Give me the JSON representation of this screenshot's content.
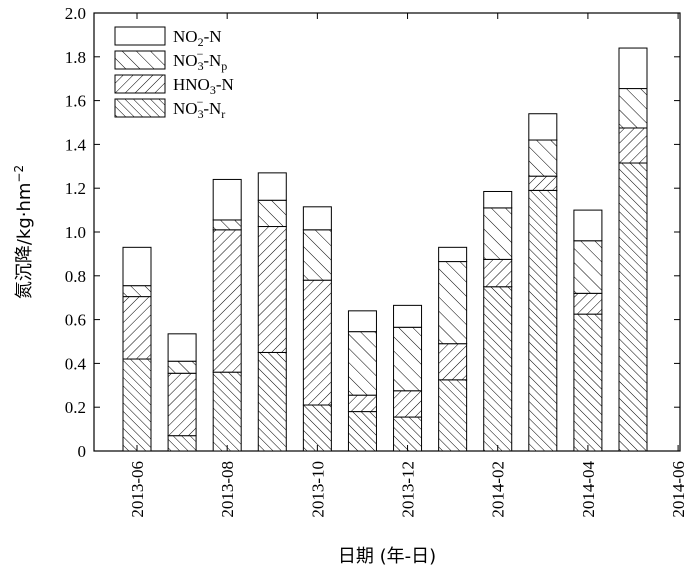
{
  "chart_data": {
    "type": "bar",
    "stacked": true,
    "ylabel_main": "氮沉降/kg·hm",
    "ylabel_sup": "−2",
    "xlabel": "日期 (年-日)",
    "ylim": [
      0,
      2.0
    ],
    "yticks": [
      "0",
      "0.2",
      "0.4",
      "0.6",
      "0.8",
      "1.0",
      "1.2",
      "1.4",
      "1.6",
      "1.8",
      "2.0"
    ],
    "xticks": [
      "2013-06",
      "2013-08",
      "2013-10",
      "2013-12",
      "2014-02",
      "2014-04",
      "2014-06"
    ],
    "categories": [
      "2013-06",
      "2013-07",
      "2013-08",
      "2013-09",
      "2013-10",
      "2013-11",
      "2013-12",
      "2014-01",
      "2014-02",
      "2014-03",
      "2014-04",
      "2014-05"
    ],
    "series": [
      {
        "name": "NO3⁻-Nr",
        "values": [
          0.42,
          0.07,
          0.36,
          0.45,
          0.21,
          0.18,
          0.155,
          0.325,
          0.75,
          1.19,
          0.625,
          1.315
        ]
      },
      {
        "name": "HNO3-N",
        "values": [
          0.285,
          0.285,
          0.65,
          0.575,
          0.57,
          0.075,
          0.12,
          0.165,
          0.125,
          0.065,
          0.095,
          0.16
        ]
      },
      {
        "name": "NO3⁻-Np",
        "values": [
          0.05,
          0.055,
          0.045,
          0.12,
          0.23,
          0.29,
          0.29,
          0.375,
          0.235,
          0.165,
          0.24,
          0.18
        ]
      },
      {
        "name": "NO2-N",
        "values": [
          0.175,
          0.125,
          0.185,
          0.125,
          0.105,
          0.095,
          0.1,
          0.065,
          0.075,
          0.12,
          0.14,
          0.185
        ]
      }
    ],
    "legend": [
      {
        "main": "NO",
        "sub": "2",
        "rest": "-N",
        "subscript_tail": ""
      },
      {
        "main": "NO",
        "sub": "3",
        "sup": "−",
        "rest": "-N",
        "subscript_tail": "p"
      },
      {
        "main": "HNO",
        "sub": "3",
        "rest": "-N",
        "subscript_tail": ""
      },
      {
        "main": "NO",
        "sub": "3",
        "sup": "−",
        "rest": "-N",
        "subscript_tail": "r"
      }
    ],
    "legend_position": "top-left",
    "grid": false
  }
}
